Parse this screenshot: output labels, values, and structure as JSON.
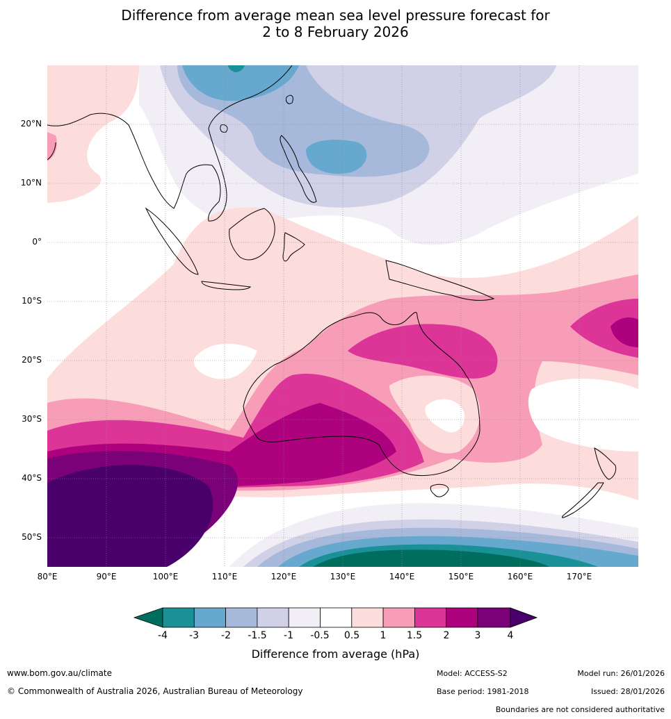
{
  "title": {
    "line1": "Difference from average mean sea level pressure forecast for",
    "line2": "2 to 8 February 2026"
  },
  "map": {
    "lat_labels": [
      "20°N",
      "10°N",
      "0°",
      "10°S",
      "20°S",
      "30°S",
      "40°S",
      "50°S"
    ],
    "lon_labels": [
      "80°E",
      "90°E",
      "100°E",
      "110°E",
      "120°E",
      "130°E",
      "140°E",
      "150°E",
      "160°E",
      "170°E"
    ]
  },
  "colorbar": {
    "ticks": [
      "-4",
      "-3",
      "-2",
      "-1.5",
      "-1",
      "-0.5",
      "0.5",
      "1",
      "1.5",
      "2",
      "3",
      "4"
    ],
    "colors": {
      "below_min": "#006e5e",
      "bins": [
        "#1a9097",
        "#67a8cf",
        "#a6b9db",
        "#d0d0e6",
        "#f2eef5",
        "#ffffff",
        "#fddcdc",
        "#f89db8",
        "#dd3497",
        "#ae017e",
        "#7a0177"
      ],
      "above_max": "#49006a"
    },
    "label": "Difference from average (hPa)"
  },
  "footer": {
    "website": "www.bom.gov.au/climate",
    "copyright": "© Commonwealth of Australia 2026, Australian Bureau of Meteorology",
    "model": "Model: ACCESS-S2",
    "base_period": "Base period: 1981-2018",
    "model_run": "Model run: 26/01/2026",
    "issued": "Issued: 28/01/2026",
    "disclaimer": "Boundaries are not considered authoritative"
  }
}
